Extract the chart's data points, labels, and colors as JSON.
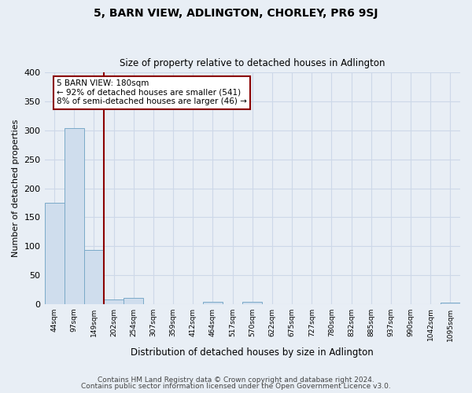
{
  "title": "5, BARN VIEW, ADLINGTON, CHORLEY, PR6 9SJ",
  "subtitle": "Size of property relative to detached houses in Adlington",
  "xlabel": "Distribution of detached houses by size in Adlington",
  "ylabel": "Number of detached properties",
  "bar_labels": [
    "44sqm",
    "97sqm",
    "149sqm",
    "202sqm",
    "254sqm",
    "307sqm",
    "359sqm",
    "412sqm",
    "464sqm",
    "517sqm",
    "570sqm",
    "622sqm",
    "675sqm",
    "727sqm",
    "780sqm",
    "832sqm",
    "885sqm",
    "937sqm",
    "990sqm",
    "1042sqm",
    "1095sqm"
  ],
  "bar_values": [
    175,
    304,
    93,
    8,
    10,
    0,
    0,
    0,
    3,
    0,
    3,
    0,
    0,
    0,
    0,
    0,
    0,
    0,
    0,
    0,
    2
  ],
  "bar_color": "#cfdded",
  "bar_edge_color": "#7baac8",
  "grid_color": "#cdd8e8",
  "background_color": "#e8eef5",
  "vline_color": "#8b0000",
  "annotation_title": "5 BARN VIEW: 180sqm",
  "annotation_line1": "← 92% of detached houses are smaller (541)",
  "annotation_line2": "8% of semi-detached houses are larger (46) →",
  "annotation_box_color": "#ffffff",
  "annotation_box_edge": "#8b0000",
  "ylim": [
    0,
    400
  ],
  "yticks": [
    0,
    50,
    100,
    150,
    200,
    250,
    300,
    350,
    400
  ],
  "footnote1": "Contains HM Land Registry data © Crown copyright and database right 2024.",
  "footnote2": "Contains public sector information licensed under the Open Government Licence v3.0."
}
